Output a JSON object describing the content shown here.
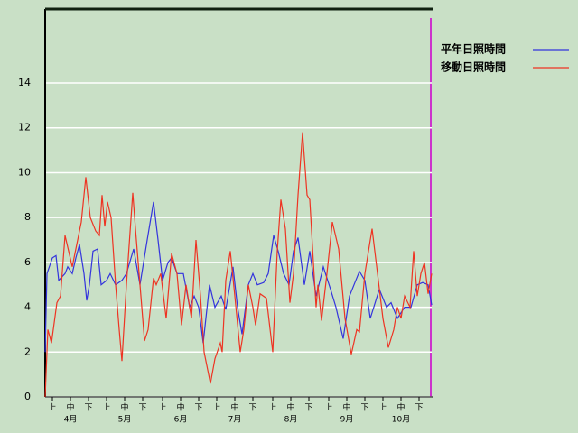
{
  "chart_data": {
    "type": "line",
    "xlim": [
      0,
      214
    ],
    "ylim": [
      0,
      17.3
    ],
    "yticks": [
      0,
      2,
      4,
      6,
      8,
      10,
      12,
      14
    ],
    "xticks": [
      {
        "value": 4,
        "label": "上"
      },
      {
        "value": 14,
        "label": "中"
      },
      {
        "value": 24,
        "label": "下"
      },
      {
        "value": 34,
        "label": "上"
      },
      {
        "value": 44,
        "label": "中"
      },
      {
        "value": 54,
        "label": "下"
      },
      {
        "value": 65,
        "label": "上"
      },
      {
        "value": 75,
        "label": "中"
      },
      {
        "value": 85,
        "label": "下"
      },
      {
        "value": 95,
        "label": "上"
      },
      {
        "value": 105,
        "label": "中"
      },
      {
        "value": 115,
        "label": "下"
      },
      {
        "value": 126,
        "label": "上"
      },
      {
        "value": 136,
        "label": "中"
      },
      {
        "value": 146,
        "label": "下"
      },
      {
        "value": 157,
        "label": "上"
      },
      {
        "value": 167,
        "label": "中"
      },
      {
        "value": 177,
        "label": "下"
      },
      {
        "value": 187,
        "label": "上"
      },
      {
        "value": 197,
        "label": "中"
      },
      {
        "value": 207,
        "label": "下"
      }
    ],
    "month_ticks": [
      {
        "value": 14,
        "label": "4月"
      },
      {
        "value": 44,
        "label": "5月"
      },
      {
        "value": 75,
        "label": "6月"
      },
      {
        "value": 105,
        "label": "7月"
      },
      {
        "value": 136,
        "label": "8月"
      },
      {
        "value": 167,
        "label": "9月"
      },
      {
        "value": 197,
        "label": "10月"
      }
    ],
    "grid": true,
    "series": [
      {
        "name": "平年日照時間",
        "color": "#3333dd",
        "x": [
          0,
          1,
          4,
          6,
          7.5,
          11,
          12.5,
          15,
          17,
          19,
          21.5,
          23,
          24.5,
          26.5,
          29,
          31,
          34,
          36,
          39,
          42.5,
          45,
          49,
          52.5,
          56.5,
          60,
          62.5,
          65,
          68,
          70,
          73,
          76.5,
          80,
          82.5,
          85,
          87.5,
          91,
          94,
          97.5,
          100,
          104,
          106.5,
          109,
          112.5,
          115,
          117.5,
          121,
          123.5,
          126.5,
          129,
          132,
          135,
          137.5,
          140,
          143.5,
          146.5,
          150,
          154,
          158,
          161,
          165,
          168.5,
          171.5,
          174,
          177,
          180,
          185,
          189,
          191.5,
          195,
          199,
          202.5,
          206,
          209,
          212,
          214
        ],
        "values": [
          2,
          5.5,
          6.2,
          6.3,
          5.2,
          5.5,
          5.8,
          5.5,
          6.2,
          6.8,
          5.5,
          4.3,
          5,
          6.5,
          6.6,
          5,
          5.2,
          5.5,
          5,
          5.2,
          5.5,
          6.6,
          5,
          7,
          8.7,
          7,
          5.2,
          6,
          6.2,
          5.5,
          5.5,
          4,
          4.5,
          4,
          2.4,
          5,
          4,
          4.5,
          3.9,
          5.8,
          4,
          2.8,
          5,
          5.5,
          5,
          5.1,
          5.5,
          7.2,
          6.5,
          5.5,
          5,
          6.5,
          7.1,
          5,
          6.5,
          4.5,
          5.8,
          4.8,
          4,
          2.6,
          4.5,
          5.1,
          5.6,
          5.2,
          3.5,
          4.8,
          4,
          4.2,
          3.5,
          4,
          4,
          5,
          5.1,
          5,
          4.1
        ]
      },
      {
        "name": "移動日照時間",
        "color": "#ee3322",
        "x": [
          0,
          1.5,
          3.5,
          6.5,
          8.5,
          11,
          13,
          15,
          20,
          22.5,
          25,
          28,
          30,
          31.5,
          33,
          34.5,
          36.5,
          39,
          41,
          42.5,
          45,
          48.5,
          50,
          52.5,
          55,
          57,
          60,
          61.5,
          64,
          67,
          70,
          73,
          75.5,
          78,
          81,
          83.5,
          86,
          88,
          91.5,
          94,
          97,
          98,
          100,
          102.5,
          105,
          108,
          110,
          112.5,
          115,
          116.5,
          119,
          122.5,
          126,
          128.5,
          130.5,
          133,
          135.5,
          137.5,
          140,
          142.5,
          145,
          146.5,
          148.5,
          150,
          151,
          153,
          156,
          159,
          162.5,
          166,
          169.5,
          172.5,
          174,
          177,
          181,
          184,
          187,
          190,
          193,
          195,
          197,
          199,
          202,
          204,
          206,
          208,
          210,
          212,
          214
        ],
        "values": [
          0,
          3,
          2.4,
          4.2,
          4.5,
          7.2,
          6.5,
          5.8,
          7.8,
          9.8,
          8,
          7.4,
          7.2,
          9,
          7.6,
          8.7,
          8,
          5,
          3,
          1.6,
          5,
          9.1,
          7.5,
          5,
          2.5,
          3,
          5.3,
          5,
          5.5,
          3.5,
          6.4,
          5.5,
          3.2,
          5,
          3.5,
          7,
          4.5,
          2,
          0.6,
          1.7,
          2.4,
          2,
          5.2,
          6.5,
          4.5,
          2,
          3,
          5,
          4,
          3.2,
          4.6,
          4.4,
          2,
          6.5,
          8.8,
          7.5,
          4.2,
          5.5,
          9,
          11.8,
          9,
          8.8,
          6,
          4,
          5,
          3.4,
          5.5,
          7.8,
          6.6,
          3.5,
          1.9,
          3,
          2.9,
          5.5,
          7.5,
          5.5,
          3.5,
          2.2,
          3,
          4,
          3.5,
          4.5,
          4,
          6.5,
          4.5,
          5.5,
          6,
          4.6,
          5.5
        ]
      }
    ]
  }
}
